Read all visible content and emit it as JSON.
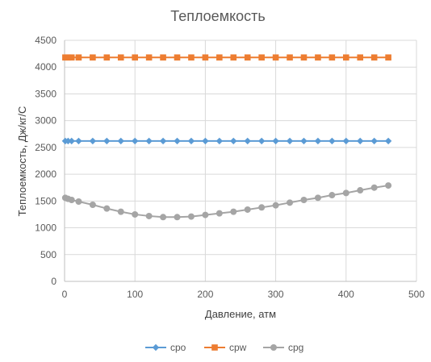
{
  "chart_data": {
    "type": "line",
    "title": "Теплоемкость",
    "xlabel": "Давление, атм",
    "ylabel": "Теплоемкость, Дж/кг/С",
    "xlim": [
      0,
      500
    ],
    "ylim": [
      0,
      4500
    ],
    "x_ticks": [
      0,
      100,
      200,
      300,
      400,
      500
    ],
    "y_ticks": [
      0,
      500,
      1000,
      1500,
      2000,
      2500,
      3000,
      3500,
      4000,
      4500
    ],
    "grid": true,
    "legend_position": "bottom",
    "x": [
      1,
      5,
      10,
      20,
      40,
      60,
      80,
      100,
      120,
      140,
      160,
      180,
      200,
      220,
      240,
      260,
      280,
      300,
      320,
      340,
      360,
      380,
      400,
      420,
      440,
      460
    ],
    "series": [
      {
        "name": "cpo",
        "color": "#5B9BD5",
        "marker": "diamond",
        "values": [
          2620,
          2620,
          2620,
          2620,
          2620,
          2620,
          2620,
          2620,
          2620,
          2620,
          2620,
          2620,
          2620,
          2620,
          2620,
          2620,
          2620,
          2620,
          2620,
          2620,
          2620,
          2620,
          2620,
          2620,
          2620,
          2620
        ]
      },
      {
        "name": "cpw",
        "color": "#ED7D31",
        "marker": "square",
        "values": [
          4180,
          4180,
          4180,
          4180,
          4180,
          4180,
          4180,
          4180,
          4180,
          4180,
          4180,
          4180,
          4180,
          4180,
          4180,
          4180,
          4180,
          4180,
          4180,
          4180,
          4180,
          4180,
          4180,
          4180,
          4180,
          4180
        ]
      },
      {
        "name": "cpg",
        "color": "#A5A5A5",
        "marker": "circle",
        "values": [
          1560,
          1540,
          1520,
          1490,
          1430,
          1360,
          1300,
          1250,
          1220,
          1200,
          1200,
          1210,
          1240,
          1270,
          1300,
          1340,
          1380,
          1420,
          1470,
          1520,
          1560,
          1610,
          1650,
          1700,
          1750,
          1790
        ]
      }
    ]
  }
}
